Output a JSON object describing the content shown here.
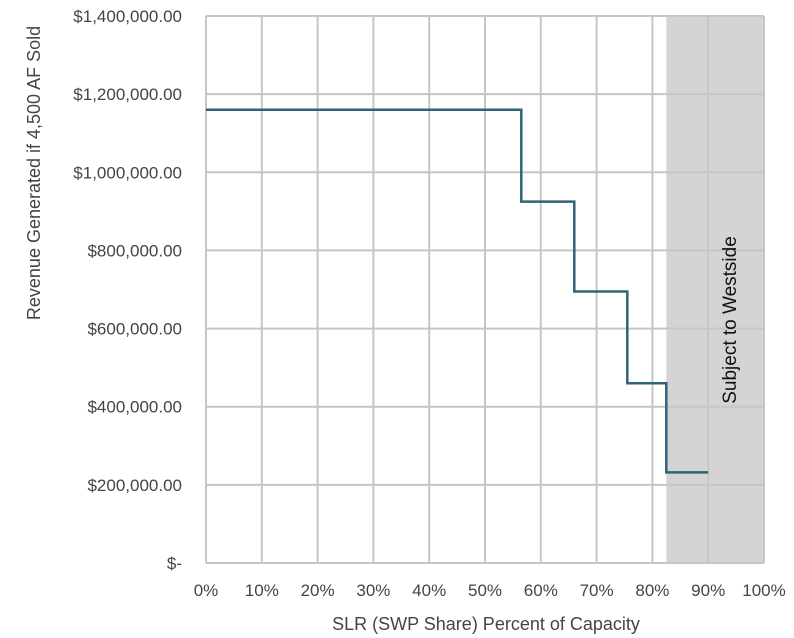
{
  "chart_data": {
    "type": "line",
    "step": true,
    "title": "",
    "xlabel": "SLR (SWP Share) Percent of Capacity",
    "ylabel": "Revenue Generated if 4,500 AF Sold",
    "xlim": [
      0,
      100
    ],
    "ylim": [
      0,
      1400000
    ],
    "x_ticks": [
      0,
      10,
      20,
      30,
      40,
      50,
      60,
      70,
      80,
      90,
      100
    ],
    "x_tick_labels": [
      "0%",
      "10%",
      "20%",
      "30%",
      "40%",
      "50%",
      "60%",
      "70%",
      "80%",
      "90%",
      "100%"
    ],
    "y_ticks": [
      0,
      200000,
      400000,
      600000,
      800000,
      1000000,
      1200000,
      1400000
    ],
    "y_tick_labels": [
      "$-",
      "$200,000.00",
      "$400,000.00",
      "$600,000.00",
      "$800,000.00",
      "$1,000,000.00",
      "$1,200,000.00",
      "$1,400,000.00"
    ],
    "grid": true,
    "legend": "none",
    "series": [
      {
        "color": "#2e6479",
        "points": [
          [
            0,
            1160000
          ],
          [
            56.5,
            1160000
          ],
          [
            56.5,
            925000
          ],
          [
            66,
            925000
          ],
          [
            66,
            695000
          ],
          [
            75.5,
            695000
          ],
          [
            75.5,
            460000
          ],
          [
            82.5,
            460000
          ],
          [
            82.5,
            232000
          ],
          [
            90,
            232000
          ]
        ]
      }
    ],
    "shaded_region": {
      "x_range": [
        82.5,
        100
      ],
      "label": "Subject to Westside",
      "color": "#d4d4d4"
    }
  }
}
